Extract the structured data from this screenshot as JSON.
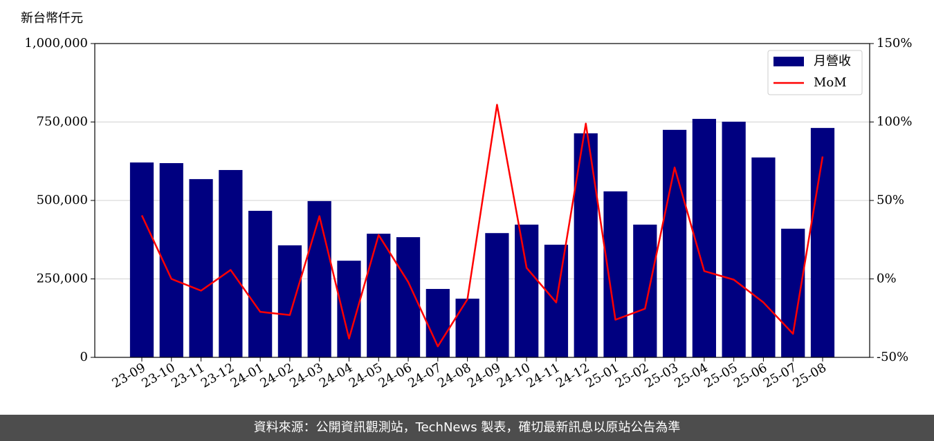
{
  "chart_data": {
    "type": "bar-line",
    "y_label": "新台幣仟元",
    "categories": [
      "23-09",
      "23-10",
      "23-11",
      "23-12",
      "24-01",
      "24-02",
      "24-03",
      "24-04",
      "24-05",
      "24-06",
      "24-07",
      "24-08",
      "24-09",
      "24-10",
      "24-11",
      "24-12",
      "25-01",
      "25-02",
      "25-03",
      "25-04",
      "25-05",
      "25-06",
      "25-07",
      "25-08"
    ],
    "series": [
      {
        "name": "月營收",
        "type": "bar",
        "color": "#000080",
        "values": [
          621000,
          619000,
          568000,
          597000,
          467000,
          357000,
          498000,
          308000,
          394000,
          383000,
          218000,
          187000,
          396000,
          423000,
          359000,
          714000,
          529000,
          423000,
          725000,
          760000,
          751000,
          637000,
          410000,
          731000
        ]
      },
      {
        "name": "MoM",
        "type": "line",
        "axis": "y2",
        "color": "#ff0000",
        "values": [
          40.5,
          0,
          -7.5,
          5.7,
          -21,
          -23,
          40,
          -38,
          28,
          -2,
          -43,
          -13,
          111,
          7,
          -15,
          99,
          -26,
          -19,
          71,
          5,
          -0.5,
          -15,
          -35,
          78
        ]
      }
    ],
    "ylim": [
      0,
      1000000
    ],
    "yticks": [
      0,
      {
        "value": 250000,
        "label": "250,000"
      },
      {
        "value": 500000,
        "label": "500,000"
      },
      {
        "value": 750000,
        "label": "750,000"
      },
      {
        "value": 1000000,
        "label": "1,000,000"
      }
    ],
    "y2lim": [
      -50,
      150
    ],
    "y2ticks": [
      {
        "value": -50,
        "label": "-50%"
      },
      {
        "value": 0,
        "label": "0%"
      },
      {
        "value": 50,
        "label": "50%"
      },
      {
        "value": 100,
        "label": "100%"
      },
      {
        "value": 150,
        "label": "150%"
      }
    ],
    "grid": true,
    "legend": "upper right",
    "source": "資料來源：公開資訊觀測站，TechNews 製表，確切最新訊息以原站公告為準"
  }
}
